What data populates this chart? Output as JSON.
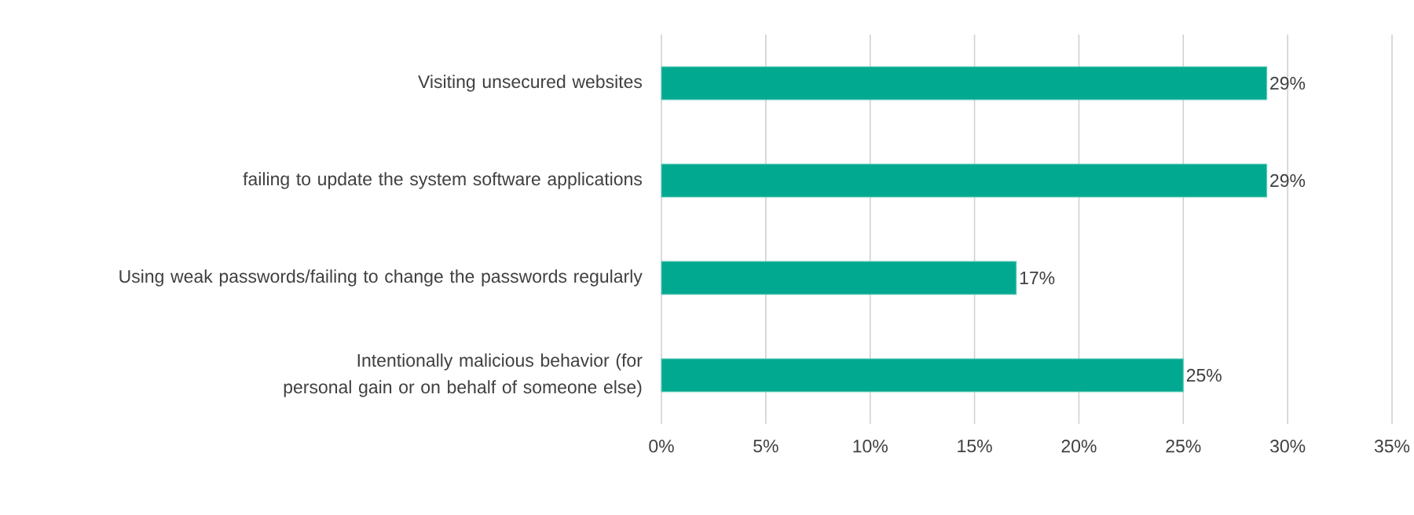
{
  "chart_data": {
    "type": "bar",
    "orientation": "horizontal",
    "categories": [
      "Visiting unsecured websites",
      "failing to update the system software applications",
      "Using weak passwords/failing to change the passwords regularly",
      "Intentionally malicious behavior (for personal gain or on behalf of someone else)"
    ],
    "values": [
      29,
      29,
      17,
      25
    ],
    "value_labels": [
      "29%",
      "29%",
      "17%",
      "25%"
    ],
    "color": "#00a98f",
    "xlim": [
      0,
      35
    ],
    "xticks": [
      {
        "value": 0,
        "label": "0%"
      },
      {
        "value": 5,
        "label": "5%"
      },
      {
        "value": 10,
        "label": "10%"
      },
      {
        "value": 15,
        "label": "15%"
      },
      {
        "value": 20,
        "label": "20%"
      },
      {
        "value": 25,
        "label": "25%"
      },
      {
        "value": 30,
        "label": "30%"
      },
      {
        "value": 35,
        "label": "35%"
      }
    ],
    "grid": "x"
  }
}
